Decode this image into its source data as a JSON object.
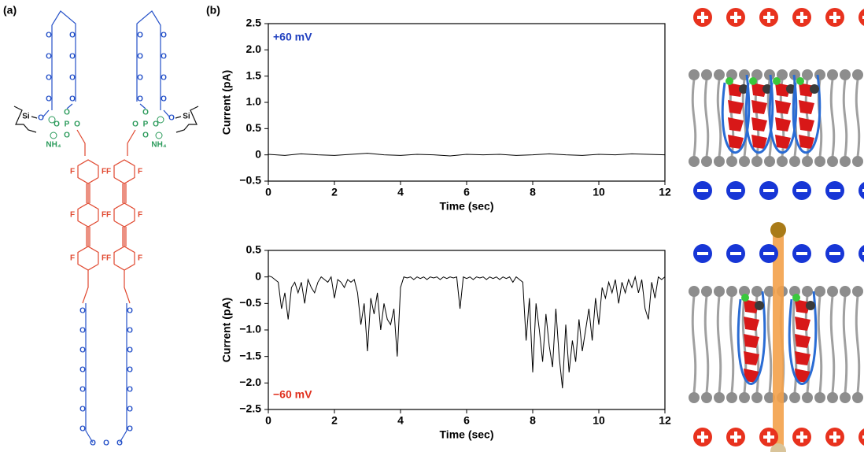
{
  "panel_a": "(a)",
  "panel_b": "(b)",
  "structure": {
    "strand_labels": [
      "O",
      "O",
      "O",
      "O",
      "O",
      "O",
      "O",
      "O",
      "Si",
      "O",
      "O",
      "O",
      "P",
      "O",
      "O",
      "NH₄",
      "F",
      "F",
      "F",
      "F",
      "F",
      "F",
      "O",
      "O",
      "O",
      "O",
      "O",
      "O",
      "O"
    ],
    "bottom_labels": [
      "O",
      "O",
      "O"
    ]
  },
  "chart_data": [
    {
      "type": "line",
      "annotation": "+60 mV",
      "annotation_color": "#1f3fbf",
      "x_label": "Time (sec)",
      "y_label": "Current (pA)",
      "x": [
        0,
        0.5,
        1,
        1.5,
        2,
        2.5,
        3,
        3.5,
        4,
        4.5,
        5,
        5.5,
        6,
        6.5,
        7,
        7.5,
        8,
        8.5,
        9,
        9.5,
        10,
        10.5,
        11,
        11.5,
        12
      ],
      "series": [
        {
          "color": "#000000",
          "values": [
            0.01,
            -0.01,
            0.02,
            0,
            -0.01,
            0.01,
            0.03,
            0,
            -0.01,
            0.01,
            0,
            -0.02,
            0.01,
            0,
            0.01,
            -0.01,
            0,
            0.02,
            0,
            -0.01,
            0.01,
            0,
            0.02,
            0.01,
            0
          ]
        }
      ],
      "xlim": [
        0,
        12
      ],
      "xticks": [
        0,
        2,
        4,
        6,
        8,
        10,
        12
      ],
      "ylim": [
        -0.5,
        2.5
      ],
      "yticks": [
        {
          "value": -0.5,
          "label": "−0.5"
        },
        0,
        0.5,
        {
          "value": 1,
          "label": "1.0"
        },
        1.5,
        {
          "value": 2,
          "label": "2.0"
        },
        2.5
      ]
    },
    {
      "type": "line",
      "annotation": "−60 mV",
      "annotation_color": "#e0301e",
      "x_label": "Time (sec)",
      "y_label": "Current (pA)",
      "x": [
        0,
        0.1,
        0.2,
        0.3,
        0.4,
        0.5,
        0.6,
        0.7,
        0.8,
        0.9,
        1,
        1.1,
        1.2,
        1.3,
        1.4,
        1.5,
        1.6,
        1.7,
        1.8,
        1.9,
        2,
        2.1,
        2.2,
        2.3,
        2.4,
        2.5,
        2.6,
        2.7,
        2.8,
        2.9,
        3,
        3.1,
        3.2,
        3.3,
        3.4,
        3.5,
        3.6,
        3.7,
        3.8,
        3.9,
        4,
        4.1,
        4.2,
        4.3,
        4.4,
        4.5,
        4.6,
        4.7,
        4.8,
        4.9,
        5,
        5.1,
        5.2,
        5.3,
        5.4,
        5.5,
        5.6,
        5.7,
        5.8,
        5.9,
        6,
        6.1,
        6.2,
        6.3,
        6.4,
        6.5,
        6.6,
        6.7,
        6.8,
        6.9,
        7,
        7.1,
        7.2,
        7.3,
        7.4,
        7.5,
        7.6,
        7.7,
        7.8,
        7.9,
        8,
        8.1,
        8.2,
        8.3,
        8.4,
        8.5,
        8.6,
        8.7,
        8.8,
        8.9,
        9,
        9.1,
        9.2,
        9.3,
        9.4,
        9.5,
        9.6,
        9.7,
        9.8,
        9.9,
        10,
        10.1,
        10.2,
        10.3,
        10.4,
        10.5,
        10.6,
        10.7,
        10.8,
        10.9,
        11,
        11.1,
        11.2,
        11.3,
        11.4,
        11.5,
        11.6,
        11.7,
        11.8,
        11.9,
        12
      ],
      "series": [
        {
          "color": "#000000",
          "values": [
            0.02,
            0,
            -0.05,
            -0.1,
            -0.6,
            -0.3,
            -0.8,
            -0.2,
            -0.1,
            -0.3,
            -0.1,
            -0.5,
            -0.05,
            -0.2,
            -0.3,
            -0.1,
            0,
            -0.05,
            -0.1,
            0,
            -0.4,
            -0.05,
            -0.1,
            -0.2,
            -0.05,
            -0.1,
            -0.05,
            -0.3,
            -0.9,
            -0.5,
            -1.4,
            -0.4,
            -0.7,
            -0.3,
            -1.0,
            -0.5,
            -0.8,
            -0.9,
            -0.6,
            -1.5,
            -0.2,
            0,
            -0.02,
            0,
            -0.05,
            0,
            -0.03,
            0,
            -0.05,
            0,
            -0.02,
            0,
            -0.05,
            0,
            -0.03,
            0,
            -0.02,
            0,
            -0.6,
            0,
            -0.03,
            0,
            -0.05,
            0,
            -0.02,
            0,
            -0.05,
            0,
            -0.03,
            0,
            -0.05,
            0,
            -0.03,
            0,
            -0.1,
            0,
            -0.05,
            -0.1,
            -1.2,
            -0.4,
            -1.8,
            -0.5,
            -1.0,
            -1.6,
            -0.7,
            -1.3,
            -1.7,
            -0.6,
            -1.5,
            -2.1,
            -0.9,
            -1.8,
            -1.2,
            -1.6,
            -0.8,
            -1.4,
            -1.0,
            -0.6,
            -1.2,
            -0.4,
            -0.9,
            -0.2,
            -0.4,
            -0.1,
            -0.3,
            -0.05,
            -0.5,
            -0.1,
            -0.3,
            -0.05,
            -0.2,
            0,
            -0.3,
            -0.05,
            -0.6,
            -0.8,
            -0.1,
            -0.4,
            0,
            -0.05,
            0
          ]
        }
      ],
      "xlim": [
        0,
        12
      ],
      "xticks": [
        0,
        2,
        4,
        6,
        8,
        10,
        12
      ],
      "ylim": [
        -2.5,
        0.5
      ],
      "yticks": [
        {
          "value": -2.5,
          "label": "−2.5"
        },
        {
          "value": -2,
          "label": "−2.0"
        },
        {
          "value": -1.5,
          "label": "−1.5"
        },
        {
          "value": -1,
          "label": "−1.0"
        },
        {
          "value": -0.5,
          "label": "−0.5"
        },
        0,
        0.5
      ]
    }
  ]
}
